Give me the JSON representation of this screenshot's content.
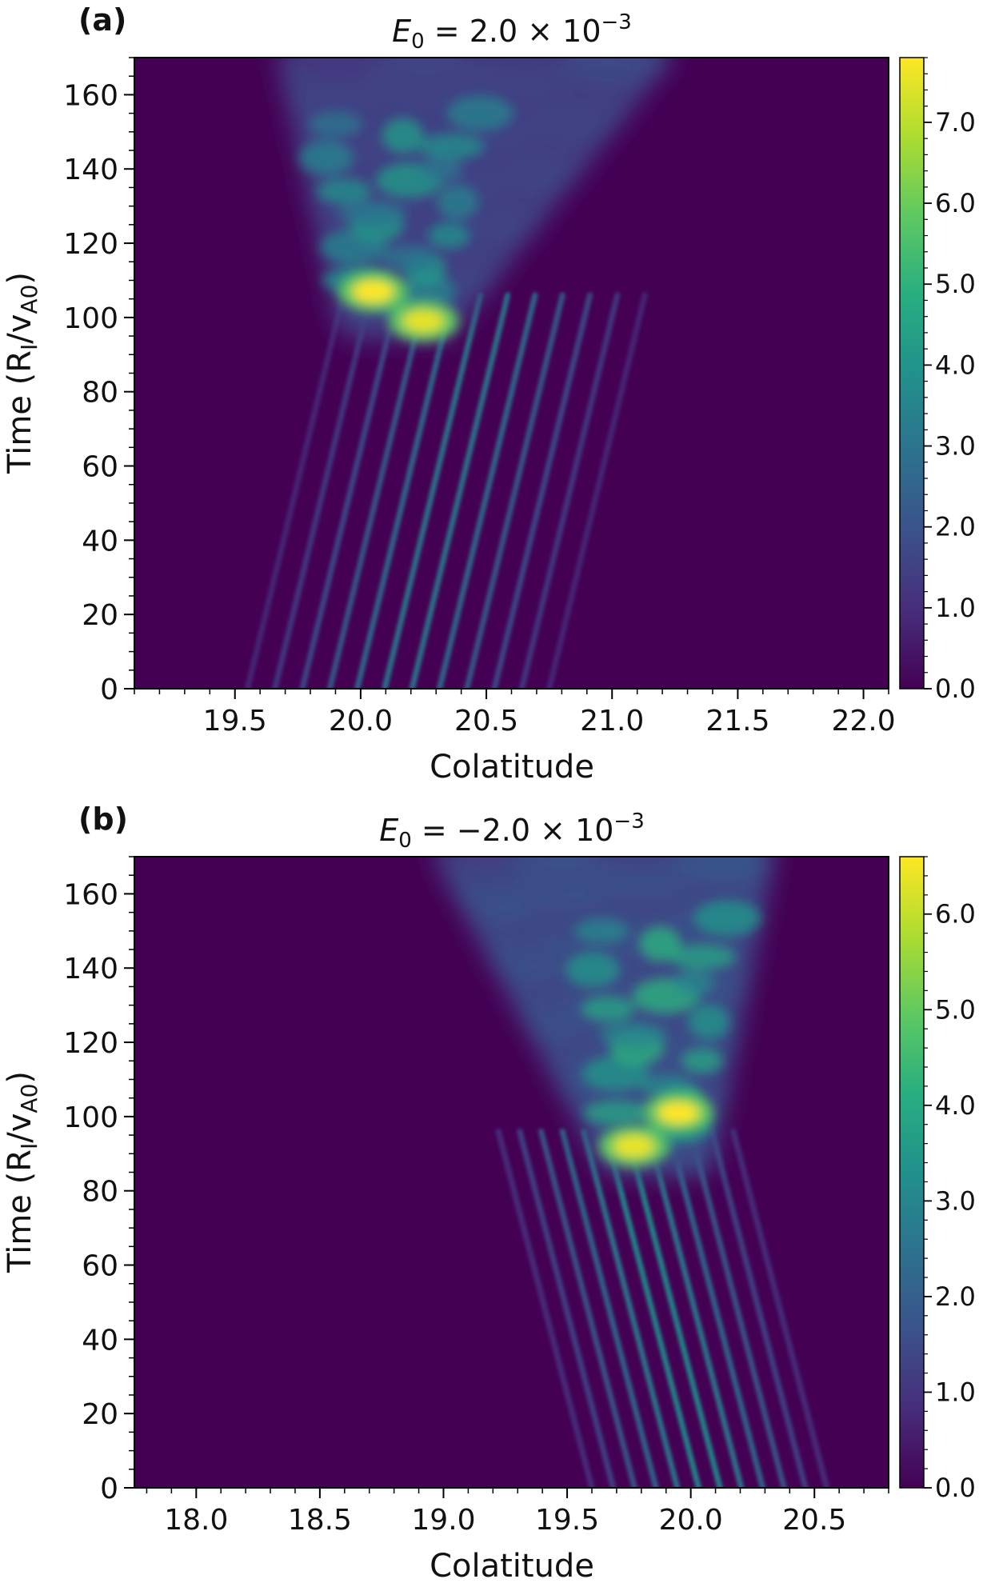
{
  "chart_data": [
    {
      "type": "heatmap",
      "panel_label": "(a)",
      "title": {
        "prefix": "E",
        "subscript": "0",
        "middle": " = 2.0 × 10",
        "superscript": "−3"
      },
      "xlabel": "Colatitude",
      "ylabel": {
        "main": "Time (R",
        "sub1": "I",
        "mid": "/v",
        "sub2": "A0",
        "end": ")"
      },
      "xlim": [
        19.1,
        22.1
      ],
      "ylim": [
        0,
        170
      ],
      "xticks": [
        "19.5",
        "20.0",
        "20.5",
        "21.0",
        "21.5",
        "22.0"
      ],
      "xtick_values": [
        19.5,
        20.0,
        20.5,
        21.0,
        21.5,
        22.0
      ],
      "yticks": [
        "0",
        "20",
        "40",
        "60",
        "80",
        "100",
        "120",
        "140",
        "160"
      ],
      "ytick_values": [
        0,
        20,
        40,
        60,
        80,
        100,
        120,
        140,
        160
      ],
      "colorbar": {
        "range": [
          0,
          7.8
        ],
        "ticks": [
          "0.0",
          "1.0",
          "2.0",
          "3.0",
          "4.0",
          "5.0",
          "6.0",
          "7.0"
        ],
        "tick_values": [
          0,
          1,
          2,
          3,
          4,
          5,
          6,
          7
        ]
      },
      "features": {
        "stripes_start_x": [
          19.55,
          20.75
        ],
        "stripes_slope": 0.0038,
        "turbulence_onset_time": 100,
        "hotspots": [
          {
            "x": 20.05,
            "y": 107,
            "value": 7.8
          },
          {
            "x": 20.25,
            "y": 99,
            "value": 7.5
          }
        ],
        "turbulent_region_x_at_top": [
          19.7,
          21.2
        ]
      },
      "colormap": "viridis"
    },
    {
      "type": "heatmap",
      "panel_label": "(b)",
      "title": {
        "prefix": "E",
        "subscript": "0",
        "middle": " = −2.0 × 10",
        "superscript": "−3"
      },
      "xlabel": "Colatitude",
      "ylabel": {
        "main": "Time (R",
        "sub1": "I",
        "mid": "/v",
        "sub2": "A0",
        "end": ")"
      },
      "xlim": [
        17.75,
        20.8
      ],
      "ylim": [
        0,
        170
      ],
      "xticks": [
        "18.0",
        "18.5",
        "19.0",
        "19.5",
        "20.0",
        "20.5"
      ],
      "xtick_values": [
        18.0,
        18.5,
        19.0,
        19.5,
        20.0,
        20.5
      ],
      "yticks": [
        "0",
        "20",
        "40",
        "60",
        "80",
        "100",
        "120",
        "140",
        "160"
      ],
      "ytick_values": [
        0,
        20,
        40,
        60,
        80,
        100,
        120,
        140,
        160
      ],
      "colorbar": {
        "range": [
          0,
          6.6
        ],
        "ticks": [
          "0.0",
          "1.0",
          "2.0",
          "3.0",
          "4.0",
          "5.0",
          "6.0"
        ],
        "tick_values": [
          0,
          1,
          2,
          3,
          4,
          5,
          6
        ]
      },
      "features": {
        "stripes_start_x": [
          19.6,
          20.55
        ],
        "stripes_slope": -0.0042,
        "turbulence_onset_time": 90,
        "hotspots": [
          {
            "x": 19.77,
            "y": 92,
            "value": 6.4
          },
          {
            "x": 19.95,
            "y": 101,
            "value": 6.6
          }
        ],
        "turbulent_region_x_at_top": [
          19.0,
          20.3
        ]
      },
      "colormap": "viridis"
    }
  ]
}
